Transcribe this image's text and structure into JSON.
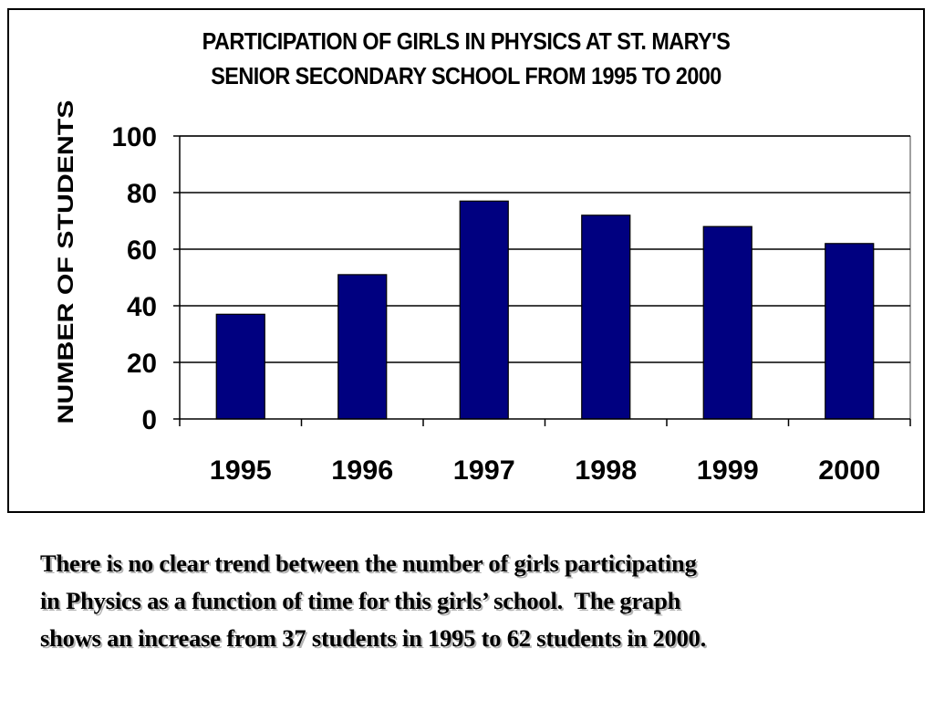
{
  "chart_data": {
    "type": "bar",
    "title_lines": [
      "PARTICIPATION OF GIRLS IN PHYSICS AT ST. MARY'S",
      "SENIOR SECONDARY SCHOOL FROM 1995 TO 2000"
    ],
    "xlabel": "",
    "ylabel": "NUMBER OF STUDENTS",
    "categories": [
      "1995",
      "1996",
      "1997",
      "1998",
      "1999",
      "2000"
    ],
    "values": [
      37,
      51,
      77,
      72,
      68,
      62
    ],
    "ylim": [
      0,
      100
    ],
    "yticks": [
      0,
      20,
      40,
      60,
      80,
      100
    ],
    "grid": true,
    "legend": "none",
    "bar_color": "#000080"
  },
  "caption": {
    "lines": [
      "There is no clear trend between the number of girls participating",
      "in Physics as a function of time for this girls’ school.  The graph",
      "shows an increase from 37 students in 1995 to 62 students in 2000."
    ]
  }
}
